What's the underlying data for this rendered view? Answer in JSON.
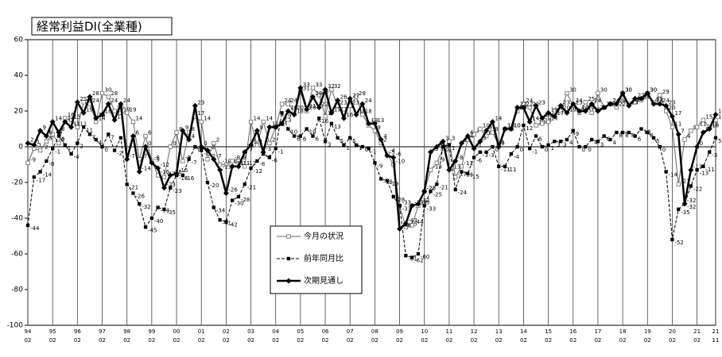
{
  "chart_data": {
    "type": "line",
    "title": "経常利益DI(全業種)",
    "categories": [
      "94",
      null,
      null,
      null,
      "95",
      null,
      null,
      null,
      "96",
      null,
      null,
      null,
      "97",
      null,
      null,
      null,
      "98",
      null,
      null,
      null,
      "99",
      null,
      null,
      null,
      "00",
      null,
      null,
      null,
      "01",
      null,
      null,
      null,
      "02",
      null,
      null,
      null,
      "03",
      null,
      null,
      null,
      "04",
      null,
      null,
      null,
      "05",
      null,
      null,
      null,
      "06",
      null,
      null,
      null,
      "07",
      null,
      null,
      null,
      "08",
      null,
      null,
      null,
      "09",
      null,
      null,
      null,
      "10",
      null,
      null,
      null,
      "11",
      null,
      null,
      null,
      "12",
      null,
      null,
      null,
      "13",
      null,
      null,
      null,
      "14",
      null,
      null,
      null,
      "15",
      null,
      null,
      null,
      "16",
      null,
      null,
      null,
      "17",
      null,
      null,
      null,
      "18",
      null,
      null,
      null,
      "19",
      null,
      null,
      null,
      "20",
      null,
      null,
      null,
      "21",
      null,
      null,
      "21"
    ],
    "category_months": [
      "02",
      null,
      null,
      null,
      "02",
      null,
      null,
      null,
      "02",
      null,
      null,
      null,
      "02",
      null,
      null,
      null,
      "02",
      null,
      null,
      null,
      "02",
      null,
      null,
      null,
      "02",
      null,
      null,
      null,
      "02",
      null,
      null,
      null,
      "02",
      null,
      null,
      null,
      "02",
      null,
      null,
      null,
      "02",
      null,
      null,
      null,
      "02",
      null,
      null,
      null,
      "02",
      null,
      null,
      null,
      "02",
      null,
      null,
      null,
      "02",
      null,
      null,
      null,
      "02",
      null,
      null,
      null,
      "02",
      null,
      null,
      null,
      "02",
      null,
      null,
      null,
      "02",
      null,
      null,
      null,
      "02",
      null,
      null,
      null,
      "02",
      null,
      null,
      null,
      "02",
      null,
      null,
      null,
      "02",
      null,
      null,
      null,
      "02",
      null,
      null,
      null,
      "02",
      null,
      null,
      null,
      "02",
      null,
      null,
      null,
      "02",
      null,
      null,
      null,
      "02",
      null,
      null,
      "11"
    ],
    "ylim": [
      -100,
      60
    ],
    "yticks": [
      -100,
      -80,
      -60,
      -40,
      -20,
      0,
      20,
      40,
      60
    ],
    "series": [
      {
        "name": "今月の状況",
        "color": "#666666",
        "marker": "square-open",
        "dashed": false,
        "line_width": 1,
        "values": [
          -9,
          -1,
          -2,
          3,
          7,
          2,
          16,
          15,
          11,
          25,
          24,
          14,
          30,
          28,
          20,
          19,
          19,
          14,
          -7,
          6,
          -8,
          -16,
          -17,
          0,
          8,
          -8,
          8,
          17,
          14,
          -7,
          2,
          -10,
          -10,
          -8,
          -8,
          -11,
          14,
          1,
          14,
          2,
          11,
          24,
          24,
          20,
          31,
          20,
          33,
          29,
          17,
          32,
          23,
          21,
          23,
          28,
          18,
          12,
          9,
          2,
          -4,
          -10,
          -33,
          -45,
          -44,
          -33,
          -25,
          -13,
          -9,
          -1,
          3,
          -17,
          -11,
          4,
          7,
          10,
          6,
          8,
          1,
          10,
          10,
          20,
          24,
          22,
          12,
          13,
          14,
          20,
          20,
          30,
          23,
          19,
          25,
          19,
          30,
          22,
          24,
          22,
          30,
          24,
          25,
          26,
          30,
          25,
          29,
          20,
          11,
          -21,
          4,
          9,
          11,
          15,
          11,
          15
        ]
      },
      {
        "name": "前年同月比",
        "color": "#000000",
        "marker": "square",
        "dashed": true,
        "line_width": 1,
        "values": [
          -44,
          -17,
          -14,
          -8,
          -1,
          6,
          1,
          -4,
          2,
          11,
          7,
          4,
          0,
          7,
          -2,
          5,
          -21,
          -26,
          -32,
          -45,
          -40,
          -34,
          -35,
          -23,
          -16,
          -16,
          -7,
          0,
          -2,
          -20,
          -34,
          -41,
          -42,
          -30,
          -28,
          -21,
          -12,
          -8,
          -4,
          -6,
          -1,
          19,
          10,
          6,
          6,
          10,
          6,
          16,
          3,
          13,
          5,
          1,
          5,
          1,
          0,
          -1,
          -9,
          -18,
          -19,
          -28,
          -33,
          -61,
          -62,
          -60,
          -33,
          -25,
          -21,
          0,
          1,
          -24,
          -14,
          -15,
          -6,
          -3,
          -3,
          0,
          -11,
          -11,
          -4,
          0,
          12,
          -1,
          6,
          0,
          1,
          3,
          3,
          4,
          9,
          0,
          0,
          4,
          3,
          6,
          4,
          8,
          8,
          8,
          6,
          10,
          8,
          5,
          0,
          -14,
          -52,
          -35,
          -32,
          -22,
          -13,
          -11,
          -3,
          5
        ]
      },
      {
        "name": "次期見通し",
        "color": "#000000",
        "marker": "diamond",
        "dashed": false,
        "line_width": 2.5,
        "values": [
          2,
          1,
          9,
          6,
          14,
          8,
          14,
          11,
          25,
          19,
          28,
          16,
          18,
          24,
          15,
          24,
          -7,
          6,
          -14,
          0,
          -9,
          -12,
          -23,
          -16,
          -15,
          9,
          4,
          23,
          0,
          -2,
          -7,
          -13,
          -26,
          -11,
          -11,
          -3,
          1,
          9,
          -3,
          11,
          11,
          13,
          20,
          18,
          33,
          21,
          28,
          22,
          32,
          19,
          26,
          16,
          27,
          18,
          24,
          13,
          13,
          4,
          -5,
          -6,
          -46,
          -43,
          -33,
          -32,
          -25,
          -3,
          0,
          3,
          -13,
          -8,
          2,
          6,
          -1,
          3,
          9,
          14,
          0,
          10,
          10,
          22,
          22,
          14,
          23,
          16,
          19,
          17,
          23,
          19,
          24,
          20,
          20,
          24,
          20,
          22,
          24,
          24,
          30,
          23,
          27,
          27,
          30,
          24,
          24,
          23,
          17,
          7,
          -32,
          -13,
          0,
          8,
          10,
          18
        ]
      }
    ]
  }
}
